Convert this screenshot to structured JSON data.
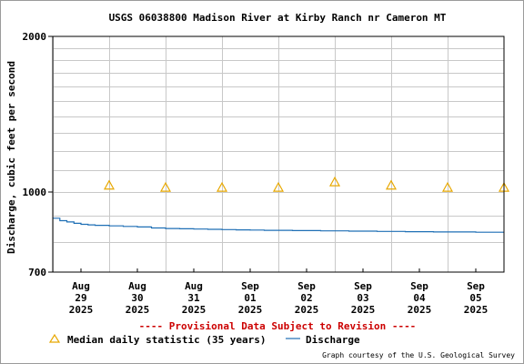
{
  "chart_data": {
    "type": "line",
    "title": "USGS 06038800 Madison River at Kirby Ranch nr Cameron MT",
    "ylabel": "Discharge, cubic feet per second",
    "y_scale": "log",
    "ylim": [
      700,
      2000
    ],
    "y_ticks": [
      "2000",
      "1000",
      "700"
    ],
    "x_ticks": [
      {
        "month": "Aug",
        "day": "29",
        "year": "2025"
      },
      {
        "month": "Aug",
        "day": "30",
        "year": "2025"
      },
      {
        "month": "Aug",
        "day": "31",
        "year": "2025"
      },
      {
        "month": "Sep",
        "day": "01",
        "year": "2025"
      },
      {
        "month": "Sep",
        "day": "02",
        "year": "2025"
      },
      {
        "month": "Sep",
        "day": "03",
        "year": "2025"
      },
      {
        "month": "Sep",
        "day": "04",
        "year": "2025"
      },
      {
        "month": "Sep",
        "day": "05",
        "year": "2025"
      }
    ],
    "grid": true,
    "series": [
      {
        "name": "Median daily statistic (35 years)",
        "kind": "marker",
        "marker": "triangle",
        "color": "#e8a800",
        "values": [
          {
            "x": "2025-08-29 12:00",
            "y": 1030
          },
          {
            "x": "2025-08-30 12:00",
            "y": 1020
          },
          {
            "x": "2025-08-31 12:00",
            "y": 1020
          },
          {
            "x": "2025-09-01 12:00",
            "y": 1020
          },
          {
            "x": "2025-09-02 12:00",
            "y": 1045
          },
          {
            "x": "2025-09-03 12:00",
            "y": 1030
          },
          {
            "x": "2025-09-04 12:00",
            "y": 1020
          },
          {
            "x": "2025-09-05 12:00",
            "y": 1020
          }
        ]
      },
      {
        "name": "Discharge",
        "kind": "line",
        "color": "#1e6fb5",
        "values": [
          {
            "x": "2025-08-28 12:00",
            "y": 890
          },
          {
            "x": "2025-08-28 15:00",
            "y": 880
          },
          {
            "x": "2025-08-28 18:00",
            "y": 875
          },
          {
            "x": "2025-08-28 21:00",
            "y": 870
          },
          {
            "x": "2025-08-29 00:00",
            "y": 866
          },
          {
            "x": "2025-08-29 03:00",
            "y": 864
          },
          {
            "x": "2025-08-29 06:00",
            "y": 862
          },
          {
            "x": "2025-08-29 12:00",
            "y": 860
          },
          {
            "x": "2025-08-29 18:00",
            "y": 858
          },
          {
            "x": "2025-08-30 00:00",
            "y": 856
          },
          {
            "x": "2025-08-30 06:00",
            "y": 852
          },
          {
            "x": "2025-08-30 12:00",
            "y": 850
          },
          {
            "x": "2025-08-30 18:00",
            "y": 849
          },
          {
            "x": "2025-08-31 00:00",
            "y": 848
          },
          {
            "x": "2025-08-31 06:00",
            "y": 847
          },
          {
            "x": "2025-08-31 12:00",
            "y": 846
          },
          {
            "x": "2025-08-31 18:00",
            "y": 845
          },
          {
            "x": "2025-09-01 00:00",
            "y": 844
          },
          {
            "x": "2025-09-01 06:00",
            "y": 843
          },
          {
            "x": "2025-09-01 12:00",
            "y": 843
          },
          {
            "x": "2025-09-01 18:00",
            "y": 842
          },
          {
            "x": "2025-09-02 00:00",
            "y": 842
          },
          {
            "x": "2025-09-02 06:00",
            "y": 841
          },
          {
            "x": "2025-09-02 12:00",
            "y": 841
          },
          {
            "x": "2025-09-02 18:00",
            "y": 840
          },
          {
            "x": "2025-09-03 00:00",
            "y": 840
          },
          {
            "x": "2025-09-03 06:00",
            "y": 839
          },
          {
            "x": "2025-09-03 12:00",
            "y": 839
          },
          {
            "x": "2025-09-03 18:00",
            "y": 838
          },
          {
            "x": "2025-09-04 00:00",
            "y": 838
          },
          {
            "x": "2025-09-04 06:00",
            "y": 837
          },
          {
            "x": "2025-09-04 12:00",
            "y": 837
          },
          {
            "x": "2025-09-04 18:00",
            "y": 837
          },
          {
            "x": "2025-09-05 00:00",
            "y": 836
          },
          {
            "x": "2025-09-05 06:00",
            "y": 836
          },
          {
            "x": "2025-09-05 12:00",
            "y": 836
          }
        ]
      }
    ],
    "legend": {
      "position": "bottom",
      "median_label": "Median daily statistic (35 years)",
      "discharge_label": "Discharge"
    },
    "provisional_note": "---- Provisional Data Subject to Revision ----",
    "credit": "Graph courtesy of the U.S. Geological Survey"
  },
  "colors": {
    "grid": "#c8c8c8",
    "axis": "#000000",
    "provisional": "#cc0000"
  }
}
